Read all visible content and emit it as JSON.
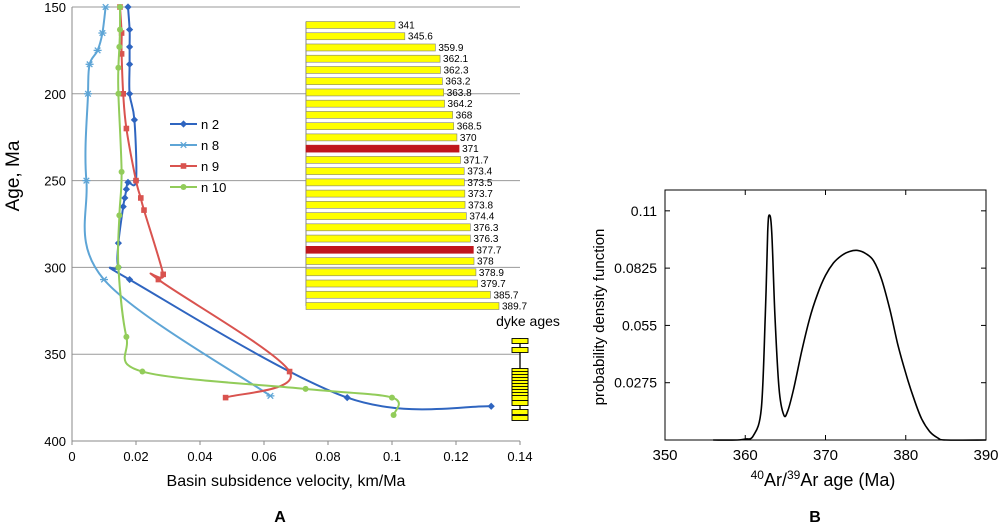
{
  "colors": {
    "n2": "#2f65c0",
    "n8": "#5ea5d6",
    "n9": "#d9534f",
    "n10": "#92cc5a",
    "bar_fill": "#ffff00",
    "bar_highlight": "#c0161c",
    "bar_edge": "#7f7f7f"
  },
  "panels": {
    "a_label": "A",
    "b_label": "B"
  },
  "chart_data": [
    {
      "type": "line",
      "xlabel": "Basin subsidence velocity, km/Ma",
      "ylabel": "Age, Ma",
      "xlim": [
        0,
        0.14
      ],
      "ylim": [
        400,
        150
      ],
      "y_inverted": true,
      "xticks": [
        "0",
        "0.02",
        "0.04",
        "0.06",
        "0.08",
        "0.1",
        "0.12",
        "0.14"
      ],
      "yticks": [
        "150",
        "200",
        "250",
        "300",
        "350",
        "400"
      ],
      "grid": "horizontal",
      "legend_position": "center-left",
      "series": [
        {
          "name": "n 2",
          "marker": "diamond",
          "points": [
            [
              0.131,
              380
            ],
            [
              0.086,
              375
            ],
            [
              0.018,
              307
            ],
            [
              0.0145,
              300
            ],
            [
              0.0145,
              286
            ],
            [
              0.016,
              265
            ],
            [
              0.0165,
              260
            ],
            [
              0.017,
              255
            ],
            [
              0.0175,
              251
            ],
            [
              0.02,
              250
            ],
            [
              0.0195,
              215
            ],
            [
              0.018,
              200
            ],
            [
              0.018,
              183
            ],
            [
              0.018,
              173
            ],
            [
              0.018,
              163
            ],
            [
              0.0175,
              150
            ]
          ]
        },
        {
          "name": "n 8",
          "marker": "asterisk",
          "points": [
            [
              0.062,
              374
            ],
            [
              0.01,
              307
            ],
            [
              0.0045,
              250
            ],
            [
              0.005,
              200
            ],
            [
              0.0055,
              183
            ],
            [
              0.008,
              175
            ],
            [
              0.0095,
              165
            ],
            [
              0.0105,
              150
            ]
          ]
        },
        {
          "name": "n 9",
          "marker": "square",
          "points": [
            [
              0.048,
              375
            ],
            [
              0.068,
              360
            ],
            [
              0.027,
              307
            ],
            [
              0.0285,
              304
            ],
            [
              0.0225,
              267
            ],
            [
              0.0215,
              260
            ],
            [
              0.02,
              250
            ],
            [
              0.017,
              220
            ],
            [
              0.016,
              200
            ],
            [
              0.0155,
              177
            ],
            [
              0.0155,
              165
            ],
            [
              0.015,
              150
            ]
          ]
        },
        {
          "name": "n 10",
          "marker": "circle",
          "points": [
            [
              0.1005,
              385
            ],
            [
              0.1,
              375
            ],
            [
              0.073,
              370
            ],
            [
              0.022,
              360
            ],
            [
              0.017,
              340
            ],
            [
              0.0145,
              300
            ],
            [
              0.0148,
              270
            ],
            [
              0.0155,
              245
            ],
            [
              0.0145,
              200
            ],
            [
              0.0145,
              185
            ],
            [
              0.0148,
              173
            ],
            [
              0.015,
              163
            ],
            [
              0.015,
              150
            ]
          ]
        }
      ],
      "inset": {
        "type": "bar",
        "orientation": "horizontal",
        "title": "dyke ages",
        "values": [
          "341",
          "345.6",
          "359.9",
          "362.1",
          "362.3",
          "363.2",
          "363.8",
          "364.2",
          "368",
          "368.5",
          "370",
          "371",
          "371.7",
          "373.4",
          "373.5",
          "373.7",
          "373.8",
          "374.4",
          "376.3",
          "376.3",
          "377.7",
          "378",
          "378.9",
          "379.7",
          "385.7",
          "389.7"
        ],
        "highlighted": [
          "371",
          "377.7"
        ]
      }
    },
    {
      "type": "line",
      "xlabel_prefix": "40",
      "xlabel_mid": "Ar/",
      "xlabel_sup2": "39",
      "xlabel_suffix": "Ar age (Ma)",
      "ylabel": "probability density function",
      "xlim": [
        350,
        390
      ],
      "ylim": [
        0,
        0.12
      ],
      "xticks": [
        "350",
        "360",
        "370",
        "380",
        "390"
      ],
      "yticks": [
        "0.0275",
        "0.055",
        "0.0825",
        "0.11"
      ],
      "series": [
        {
          "points": [
            [
              356,
              0
            ],
            [
              359,
              0
            ],
            [
              360,
              0.0005
            ],
            [
              361,
              0.002
            ],
            [
              362,
              0.015
            ],
            [
              362.5,
              0.06
            ],
            [
              362.8,
              0.1
            ],
            [
              363,
              0.108
            ],
            [
              363.3,
              0.1
            ],
            [
              363.7,
              0.06
            ],
            [
              364.2,
              0.025
            ],
            [
              364.8,
              0.012
            ],
            [
              365.3,
              0.014
            ],
            [
              366,
              0.024
            ],
            [
              367,
              0.042
            ],
            [
              368,
              0.058
            ],
            [
              369,
              0.07
            ],
            [
              370,
              0.079
            ],
            [
              371,
              0.085
            ],
            [
              372,
              0.0885
            ],
            [
              373,
              0.0905
            ],
            [
              374,
              0.091
            ],
            [
              375,
              0.0895
            ],
            [
              376,
              0.086
            ],
            [
              377,
              0.077
            ],
            [
              378,
              0.063
            ],
            [
              379,
              0.046
            ],
            [
              380,
              0.032
            ],
            [
              381,
              0.02
            ],
            [
              382,
              0.01
            ],
            [
              383,
              0.004
            ],
            [
              384,
              0.001
            ],
            [
              385,
              0
            ],
            [
              390,
              0
            ]
          ]
        }
      ]
    }
  ]
}
